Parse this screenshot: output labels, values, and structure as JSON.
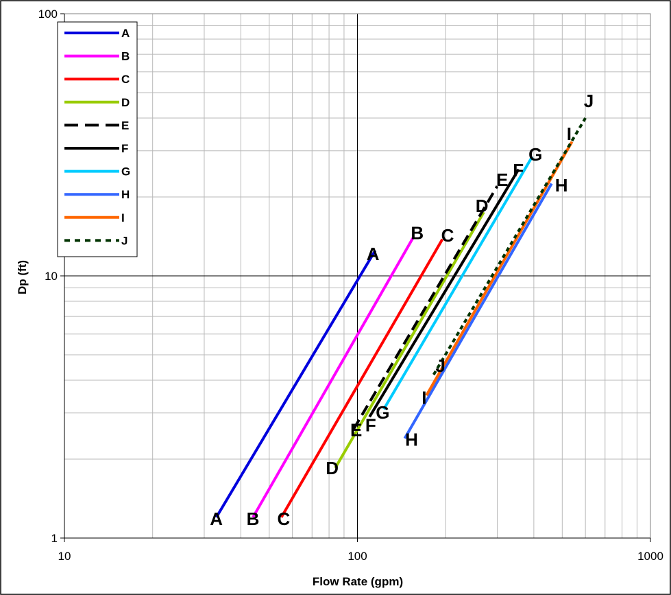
{
  "chart_data": {
    "type": "line",
    "title": "",
    "xlabel": "Flow Rate (gpm)",
    "ylabel": "Dp (ft)",
    "xscale": "log",
    "yscale": "log",
    "xlim": [
      10,
      1000
    ],
    "ylim": [
      1,
      100
    ],
    "xticks": [
      "10",
      "100",
      "1000"
    ],
    "yticks": [
      "1",
      "10",
      "100"
    ],
    "grid": true,
    "legend_position": "top-left",
    "series": [
      {
        "name": "A",
        "color": "#0000dd",
        "style": "solid",
        "x": [
          33,
          115
        ],
        "y": [
          1.2,
          12.5
        ]
      },
      {
        "name": "B",
        "color": "#ff00ff",
        "style": "solid",
        "x": [
          44,
          155
        ],
        "y": [
          1.2,
          14.0
        ]
      },
      {
        "name": "C",
        "color": "#ff0000",
        "style": "solid",
        "x": [
          55,
          195
        ],
        "y": [
          1.2,
          13.8
        ]
      },
      {
        "name": "D",
        "color": "#99cc00",
        "style": "solid",
        "x": [
          84,
          270
        ],
        "y": [
          1.85,
          17.5
        ]
      },
      {
        "name": "E",
        "color": "#000000",
        "style": "dashed",
        "x": [
          97,
          300
        ],
        "y": [
          2.6,
          22.0
        ]
      },
      {
        "name": "F",
        "color": "#000000",
        "style": "solid",
        "x": [
          110,
          355
        ],
        "y": [
          2.9,
          25.5
        ]
      },
      {
        "name": "G",
        "color": "#00ccff",
        "style": "solid",
        "x": [
          123,
          395
        ],
        "y": [
          3.1,
          28.5
        ]
      },
      {
        "name": "H",
        "color": "#3366ff",
        "style": "solid",
        "x": [
          145,
          460
        ],
        "y": [
          2.4,
          22.5
        ]
      },
      {
        "name": "I",
        "color": "#ff6600",
        "style": "solid",
        "x": [
          172,
          540
        ],
        "y": [
          3.5,
          32.5
        ]
      },
      {
        "name": "J",
        "color": "#003300",
        "style": "dotted",
        "x": [
          182,
          600
        ],
        "y": [
          4.2,
          40.0
        ]
      }
    ],
    "point_labels": [
      {
        "text": "A",
        "x": 33,
        "y": 1.12
      },
      {
        "text": "A",
        "x": 113,
        "y": 11.5
      },
      {
        "text": "B",
        "x": 44,
        "y": 1.12
      },
      {
        "text": "B",
        "x": 160,
        "y": 13.8
      },
      {
        "text": "C",
        "x": 56,
        "y": 1.12
      },
      {
        "text": "C",
        "x": 203,
        "y": 13.5
      },
      {
        "text": "D",
        "x": 82,
        "y": 1.75
      },
      {
        "text": "D",
        "x": 266,
        "y": 17.5
      },
      {
        "text": "E",
        "x": 99,
        "y": 2.45
      },
      {
        "text": "E",
        "x": 312,
        "y": 22.0
      },
      {
        "text": "F",
        "x": 111,
        "y": 2.55
      },
      {
        "text": "F",
        "x": 354,
        "y": 24.0
      },
      {
        "text": "G",
        "x": 122,
        "y": 2.85
      },
      {
        "text": "G",
        "x": 405,
        "y": 27.5
      },
      {
        "text": "H",
        "x": 153,
        "y": 2.25
      },
      {
        "text": "H",
        "x": 497,
        "y": 21.0
      },
      {
        "text": "I",
        "x": 169,
        "y": 3.25
      },
      {
        "text": "I",
        "x": 528,
        "y": 33.0
      },
      {
        "text": "J",
        "x": 192,
        "y": 4.3
      },
      {
        "text": "J",
        "x": 616,
        "y": 44.0
      }
    ]
  }
}
